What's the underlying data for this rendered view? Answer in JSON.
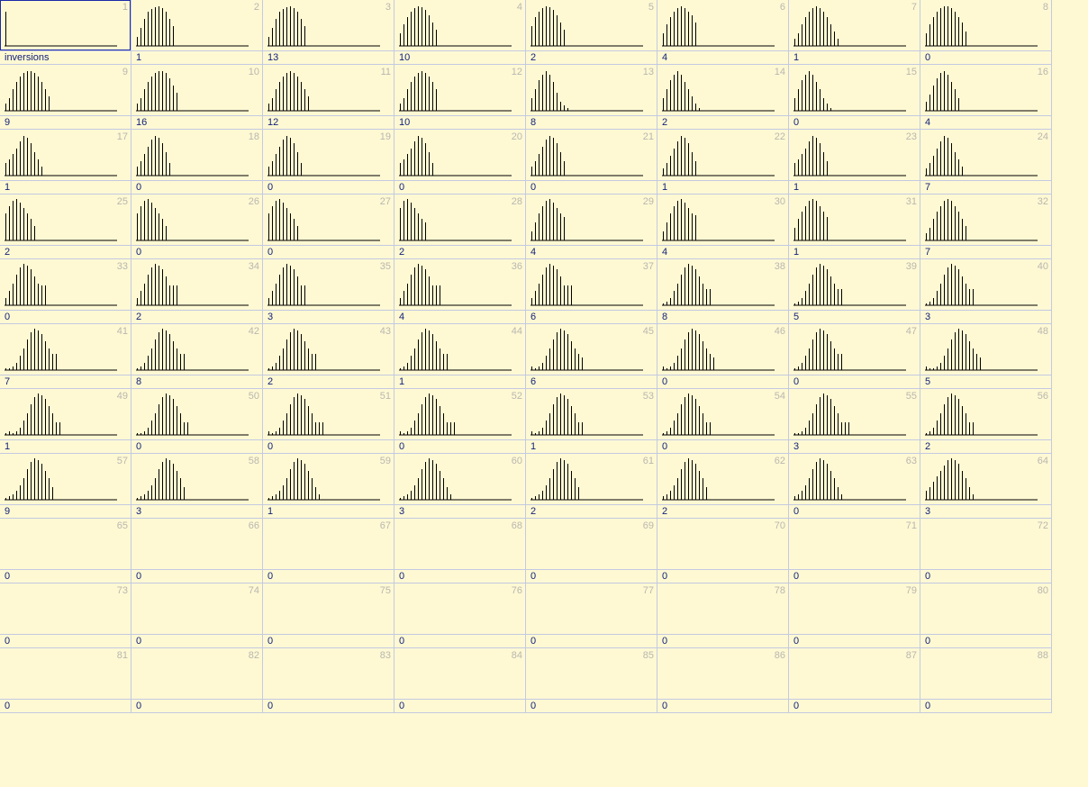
{
  "grid": {
    "cells": [
      {
        "num": "1",
        "value": "inversions",
        "bars": [
          38,
          0,
          0,
          0,
          0,
          0,
          0,
          0,
          0,
          0,
          0,
          0,
          0,
          0,
          0,
          0,
          0,
          0,
          0,
          0,
          0,
          0,
          0,
          0,
          0,
          0,
          0,
          0,
          0,
          0,
          0,
          0
        ]
      },
      {
        "num": "2",
        "value": "1",
        "bars": [
          10,
          20,
          30,
          38,
          41,
          43,
          44,
          42,
          38,
          30,
          22
        ]
      },
      {
        "num": "3",
        "value": "13",
        "bars": [
          10,
          20,
          30,
          38,
          41,
          43,
          44,
          42,
          38,
          30,
          22
        ]
      },
      {
        "num": "4",
        "value": "10",
        "bars": [
          14,
          24,
          32,
          38,
          42,
          44,
          43,
          40,
          34,
          26,
          18
        ]
      },
      {
        "num": "5",
        "value": "2",
        "bars": [
          22,
          32,
          38,
          42,
          44,
          43,
          40,
          34,
          26,
          18
        ]
      },
      {
        "num": "6",
        "value": "4",
        "bars": [
          14,
          24,
          32,
          38,
          42,
          44,
          42,
          38,
          34,
          26
        ]
      },
      {
        "num": "7",
        "value": "1",
        "bars": [
          8,
          14,
          24,
          32,
          38,
          42,
          44,
          42,
          38,
          32,
          24,
          16,
          8
        ]
      },
      {
        "num": "8",
        "value": "0",
        "bars": [
          14,
          24,
          32,
          38,
          42,
          44,
          44,
          42,
          38,
          32,
          26,
          16
        ]
      },
      {
        "num": "9",
        "value": "9",
        "bars": [
          8,
          14,
          24,
          32,
          38,
          42,
          44,
          44,
          42,
          38,
          32,
          24,
          16
        ]
      },
      {
        "num": "10",
        "value": "16",
        "bars": [
          8,
          14,
          24,
          32,
          38,
          42,
          44,
          44,
          42,
          36,
          28,
          20
        ]
      },
      {
        "num": "11",
        "value": "12",
        "bars": [
          8,
          14,
          24,
          32,
          38,
          42,
          44,
          42,
          38,
          32,
          24,
          16
        ]
      },
      {
        "num": "12",
        "value": "10",
        "bars": [
          8,
          14,
          24,
          32,
          38,
          42,
          44,
          42,
          38,
          32,
          24
        ]
      },
      {
        "num": "13",
        "value": "8",
        "bars": [
          14,
          24,
          34,
          40,
          44,
          40,
          32,
          20,
          10,
          6,
          3
        ]
      },
      {
        "num": "14",
        "value": "2",
        "bars": [
          14,
          24,
          34,
          40,
          44,
          40,
          32,
          24,
          16,
          8,
          3
        ]
      },
      {
        "num": "15",
        "value": "0",
        "bars": [
          14,
          24,
          34,
          40,
          44,
          40,
          32,
          24,
          14,
          8,
          3
        ]
      },
      {
        "num": "16",
        "value": "4",
        "bars": [
          10,
          18,
          28,
          36,
          42,
          44,
          40,
          32,
          24,
          14
        ]
      },
      {
        "num": "17",
        "value": "1",
        "bars": [
          14,
          18,
          24,
          30,
          38,
          44,
          42,
          36,
          26,
          18,
          10
        ]
      },
      {
        "num": "18",
        "value": "0",
        "bars": [
          10,
          16,
          24,
          32,
          40,
          44,
          42,
          36,
          26,
          14
        ]
      },
      {
        "num": "19",
        "value": "0",
        "bars": [
          10,
          16,
          24,
          32,
          40,
          44,
          42,
          36,
          26,
          14
        ]
      },
      {
        "num": "20",
        "value": "0",
        "bars": [
          14,
          18,
          24,
          30,
          38,
          44,
          42,
          36,
          26,
          14
        ]
      },
      {
        "num": "21",
        "value": "0",
        "bars": [
          10,
          16,
          24,
          32,
          40,
          44,
          42,
          36,
          26,
          16
        ]
      },
      {
        "num": "22",
        "value": "1",
        "bars": [
          8,
          14,
          22,
          30,
          38,
          44,
          42,
          36,
          26,
          16
        ]
      },
      {
        "num": "23",
        "value": "1",
        "bars": [
          14,
          18,
          24,
          30,
          38,
          44,
          42,
          36,
          26,
          16
        ]
      },
      {
        "num": "24",
        "value": "7",
        "bars": [
          8,
          14,
          22,
          30,
          38,
          44,
          42,
          36,
          26,
          18,
          10
        ]
      },
      {
        "num": "25",
        "value": "2",
        "bars": [
          30,
          38,
          44,
          46,
          42,
          36,
          30,
          24,
          16
        ]
      },
      {
        "num": "26",
        "value": "0",
        "bars": [
          30,
          38,
          44,
          46,
          42,
          36,
          30,
          24,
          16
        ]
      },
      {
        "num": "27",
        "value": "0",
        "bars": [
          30,
          38,
          44,
          46,
          42,
          36,
          30,
          24,
          16
        ]
      },
      {
        "num": "28",
        "value": "2",
        "bars": [
          36,
          44,
          46,
          42,
          36,
          30,
          24,
          20
        ]
      },
      {
        "num": "29",
        "value": "4",
        "bars": [
          10,
          20,
          30,
          38,
          44,
          46,
          42,
          36,
          30,
          26
        ]
      },
      {
        "num": "30",
        "value": "4",
        "bars": [
          10,
          20,
          30,
          38,
          44,
          46,
          42,
          36,
          30,
          28
        ]
      },
      {
        "num": "31",
        "value": "1",
        "bars": [
          14,
          24,
          32,
          38,
          44,
          46,
          44,
          38,
          32,
          26
        ]
      },
      {
        "num": "32",
        "value": "7",
        "bars": [
          8,
          14,
          24,
          32,
          38,
          44,
          46,
          44,
          38,
          32,
          24,
          16
        ]
      },
      {
        "num": "33",
        "value": "0",
        "bars": [
          8,
          16,
          24,
          34,
          42,
          46,
          44,
          40,
          32,
          24,
          22,
          22
        ]
      },
      {
        "num": "34",
        "value": "2",
        "bars": [
          8,
          16,
          24,
          34,
          42,
          46,
          44,
          40,
          32,
          22,
          22,
          22
        ]
      },
      {
        "num": "35",
        "value": "3",
        "bars": [
          8,
          16,
          24,
          34,
          42,
          46,
          44,
          40,
          32,
          22,
          22
        ]
      },
      {
        "num": "36",
        "value": "4",
        "bars": [
          8,
          16,
          24,
          34,
          42,
          46,
          44,
          40,
          32,
          22,
          22,
          22
        ]
      },
      {
        "num": "37",
        "value": "6",
        "bars": [
          8,
          16,
          24,
          34,
          42,
          46,
          44,
          40,
          32,
          22,
          22,
          22
        ]
      },
      {
        "num": "38",
        "value": "8",
        "bars": [
          2,
          4,
          8,
          16,
          24,
          34,
          42,
          46,
          44,
          40,
          32,
          24,
          18,
          18
        ]
      },
      {
        "num": "39",
        "value": "5",
        "bars": [
          2,
          4,
          8,
          16,
          24,
          34,
          42,
          46,
          44,
          40,
          32,
          24,
          18,
          18
        ]
      },
      {
        "num": "40",
        "value": "3",
        "bars": [
          2,
          4,
          8,
          16,
          24,
          34,
          42,
          46,
          44,
          40,
          32,
          24,
          18,
          18
        ]
      },
      {
        "num": "41",
        "value": "7",
        "bars": [
          2,
          2,
          4,
          8,
          16,
          24,
          34,
          42,
          46,
          44,
          40,
          32,
          24,
          18,
          18
        ]
      },
      {
        "num": "42",
        "value": "8",
        "bars": [
          2,
          4,
          8,
          16,
          24,
          34,
          42,
          46,
          44,
          40,
          32,
          24,
          18,
          18
        ]
      },
      {
        "num": "43",
        "value": "2",
        "bars": [
          2,
          4,
          8,
          16,
          24,
          34,
          42,
          46,
          44,
          40,
          32,
          24,
          18,
          18
        ]
      },
      {
        "num": "44",
        "value": "1",
        "bars": [
          2,
          4,
          8,
          16,
          24,
          34,
          42,
          46,
          44,
          40,
          32,
          24,
          18,
          18
        ]
      },
      {
        "num": "45",
        "value": "6",
        "bars": [
          4,
          2,
          4,
          8,
          16,
          24,
          34,
          42,
          46,
          44,
          40,
          32,
          24,
          18,
          14
        ]
      },
      {
        "num": "46",
        "value": "0",
        "bars": [
          4,
          2,
          4,
          8,
          16,
          24,
          34,
          42,
          46,
          44,
          40,
          32,
          24,
          18,
          14
        ]
      },
      {
        "num": "47",
        "value": "0",
        "bars": [
          2,
          4,
          8,
          16,
          24,
          34,
          42,
          46,
          44,
          40,
          32,
          24,
          18,
          18
        ]
      },
      {
        "num": "48",
        "value": "5",
        "bars": [
          4,
          2,
          2,
          4,
          8,
          16,
          24,
          34,
          42,
          46,
          44,
          40,
          32,
          24,
          18,
          14
        ]
      },
      {
        "num": "49",
        "value": "1",
        "bars": [
          2,
          4,
          2,
          4,
          8,
          16,
          24,
          34,
          42,
          46,
          44,
          40,
          32,
          24,
          14,
          14
        ]
      },
      {
        "num": "50",
        "value": "0",
        "bars": [
          2,
          2,
          4,
          8,
          16,
          24,
          34,
          42,
          46,
          44,
          40,
          32,
          24,
          14,
          14
        ]
      },
      {
        "num": "51",
        "value": "0",
        "bars": [
          4,
          2,
          4,
          8,
          16,
          24,
          34,
          42,
          46,
          44,
          40,
          32,
          24,
          14,
          14,
          14
        ]
      },
      {
        "num": "52",
        "value": "0",
        "bars": [
          4,
          2,
          4,
          8,
          16,
          24,
          34,
          42,
          46,
          44,
          40,
          32,
          24,
          14,
          14,
          14
        ]
      },
      {
        "num": "53",
        "value": "1",
        "bars": [
          4,
          2,
          4,
          8,
          16,
          24,
          34,
          42,
          46,
          44,
          40,
          32,
          24,
          14,
          14
        ]
      },
      {
        "num": "54",
        "value": "0",
        "bars": [
          2,
          4,
          8,
          16,
          24,
          34,
          42,
          46,
          44,
          40,
          32,
          24,
          14,
          14
        ]
      },
      {
        "num": "55",
        "value": "3",
        "bars": [
          2,
          2,
          4,
          8,
          16,
          24,
          34,
          42,
          46,
          44,
          40,
          32,
          24,
          14,
          14,
          14
        ]
      },
      {
        "num": "56",
        "value": "2",
        "bars": [
          2,
          4,
          8,
          16,
          24,
          34,
          42,
          46,
          44,
          40,
          32,
          24,
          14,
          14
        ]
      },
      {
        "num": "57",
        "value": "9",
        "bars": [
          2,
          4,
          6,
          10,
          16,
          24,
          34,
          42,
          46,
          44,
          40,
          32,
          24,
          14
        ]
      },
      {
        "num": "58",
        "value": "3",
        "bars": [
          2,
          4,
          6,
          10,
          16,
          24,
          34,
          42,
          46,
          44,
          40,
          32,
          24,
          14
        ]
      },
      {
        "num": "59",
        "value": "1",
        "bars": [
          2,
          4,
          6,
          10,
          16,
          24,
          34,
          42,
          46,
          44,
          40,
          32,
          24,
          14,
          6
        ]
      },
      {
        "num": "60",
        "value": "3",
        "bars": [
          2,
          4,
          6,
          10,
          16,
          24,
          34,
          42,
          46,
          44,
          40,
          32,
          24,
          14,
          6
        ]
      },
      {
        "num": "61",
        "value": "2",
        "bars": [
          2,
          4,
          6,
          10,
          16,
          24,
          34,
          42,
          46,
          44,
          40,
          32,
          24,
          14
        ]
      },
      {
        "num": "62",
        "value": "2",
        "bars": [
          4,
          6,
          10,
          16,
          24,
          34,
          42,
          46,
          44,
          40,
          32,
          24,
          14
        ]
      },
      {
        "num": "63",
        "value": "0",
        "bars": [
          4,
          6,
          10,
          16,
          24,
          34,
          42,
          46,
          44,
          40,
          32,
          24,
          14,
          6
        ]
      },
      {
        "num": "64",
        "value": "3",
        "bars": [
          10,
          14,
          20,
          26,
          32,
          38,
          44,
          46,
          44,
          40,
          32,
          24,
          14,
          6
        ]
      },
      {
        "num": "65",
        "value": "0",
        "bars": []
      },
      {
        "num": "66",
        "value": "0",
        "bars": []
      },
      {
        "num": "67",
        "value": "0",
        "bars": []
      },
      {
        "num": "68",
        "value": "0",
        "bars": []
      },
      {
        "num": "69",
        "value": "0",
        "bars": []
      },
      {
        "num": "70",
        "value": "0",
        "bars": []
      },
      {
        "num": "71",
        "value": "0",
        "bars": []
      },
      {
        "num": "72",
        "value": "0",
        "bars": []
      },
      {
        "num": "73",
        "value": "0",
        "bars": []
      },
      {
        "num": "74",
        "value": "0",
        "bars": []
      },
      {
        "num": "75",
        "value": "0",
        "bars": []
      },
      {
        "num": "76",
        "value": "0",
        "bars": []
      },
      {
        "num": "77",
        "value": "0",
        "bars": []
      },
      {
        "num": "78",
        "value": "0",
        "bars": []
      },
      {
        "num": "79",
        "value": "0",
        "bars": []
      },
      {
        "num": "80",
        "value": "0",
        "bars": []
      },
      {
        "num": "81",
        "value": "0",
        "bars": []
      },
      {
        "num": "82",
        "value": "0",
        "bars": []
      },
      {
        "num": "83",
        "value": "0",
        "bars": []
      },
      {
        "num": "84",
        "value": "0",
        "bars": []
      },
      {
        "num": "85",
        "value": "0",
        "bars": []
      },
      {
        "num": "86",
        "value": "0",
        "bars": []
      },
      {
        "num": "87",
        "value": "0",
        "bars": []
      },
      {
        "num": "88",
        "value": "0",
        "bars": []
      }
    ]
  },
  "colors": {
    "background": "#fef9d3",
    "grid_line": "#c4c9e2",
    "value_text": "#13227a",
    "index_text": "#b9b6b0",
    "selection": "#1a2aa8",
    "bar": "#000000"
  }
}
